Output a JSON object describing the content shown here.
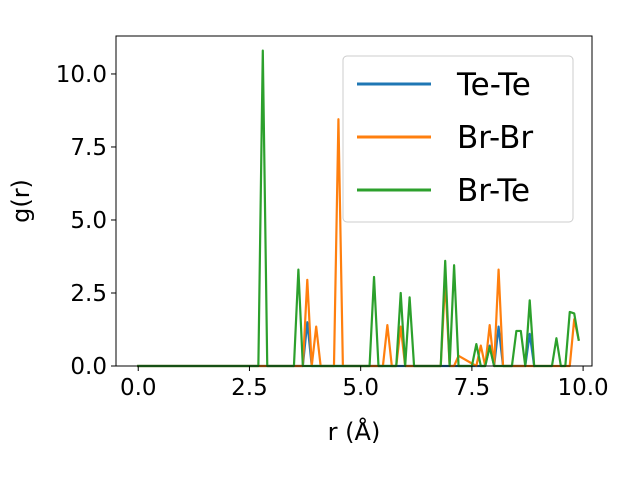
{
  "chart_data": {
    "type": "line",
    "title": "",
    "xlabel": "r (Å)",
    "ylabel": "g(r)",
    "xlim": [
      -0.5,
      10.2
    ],
    "ylim": [
      0,
      11.3
    ],
    "xticks": [
      0.0,
      2.5,
      5.0,
      7.5,
      10.0
    ],
    "xtick_labels": [
      "0.0",
      "2.5",
      "5.0",
      "7.5",
      "10.0"
    ],
    "yticks": [
      0.0,
      2.5,
      5.0,
      7.5,
      10.0
    ],
    "ytick_labels": [
      "0.0",
      "2.5",
      "5.0",
      "7.5",
      "10.0"
    ],
    "grid": false,
    "legend_position": "top-right",
    "series": [
      {
        "name": "Te-Te",
        "color": "#1f77b4",
        "x": [
          0.0,
          3.7,
          3.8,
          3.9,
          7.8,
          7.9,
          8.0,
          8.1,
          8.2,
          8.7,
          8.8,
          8.9
        ],
        "y": [
          0.0,
          0.0,
          1.5,
          0.0,
          0.0,
          0.7,
          0.0,
          1.35,
          0.0,
          0.0,
          1.1,
          0.0
        ]
      },
      {
        "name": "Br-Br",
        "color": "#ff7f0e",
        "x": [
          0.0,
          3.7,
          3.8,
          3.9,
          4.0,
          4.1,
          4.4,
          4.5,
          4.6,
          5.5,
          5.6,
          5.7,
          5.8,
          5.9,
          6.0,
          6.8,
          6.9,
          7.0,
          7.1,
          7.2,
          7.6,
          7.7,
          7.8,
          7.9,
          8.0,
          8.1,
          8.2,
          9.7,
          9.8,
          9.9
        ],
        "y": [
          0.0,
          0.0,
          2.95,
          0.0,
          1.35,
          0.0,
          0.0,
          8.45,
          0.0,
          0.0,
          1.4,
          0.0,
          0.0,
          1.35,
          0.0,
          0.0,
          2.95,
          0.0,
          0.0,
          0.35,
          0.0,
          0.7,
          0.0,
          1.4,
          0.0,
          3.3,
          0.0,
          0.0,
          1.6,
          0.9
        ]
      },
      {
        "name": "Br-Te",
        "color": "#2ca02c",
        "x": [
          0.0,
          2.7,
          2.8,
          2.9,
          3.5,
          3.6,
          3.7,
          5.2,
          5.3,
          5.4,
          5.8,
          5.9,
          6.0,
          6.1,
          6.2,
          6.8,
          6.9,
          7.0,
          7.1,
          7.2,
          7.5,
          7.6,
          7.7,
          7.8,
          7.9,
          8.0,
          8.4,
          8.5,
          8.6,
          8.7,
          8.8,
          8.9,
          9.3,
          9.4,
          9.5,
          9.6,
          9.7,
          9.8,
          9.9
        ],
        "y": [
          0.0,
          0.0,
          10.8,
          0.0,
          0.0,
          3.3,
          0.0,
          0.0,
          3.05,
          0.0,
          0.0,
          2.5,
          0.0,
          2.35,
          0.0,
          0.0,
          3.6,
          0.0,
          3.45,
          0.0,
          0.0,
          0.75,
          0.0,
          0.0,
          0.65,
          0.0,
          0.0,
          1.2,
          1.2,
          0.0,
          2.25,
          0.0,
          0.0,
          0.95,
          0.0,
          0.0,
          1.85,
          1.8,
          0.9
        ]
      }
    ]
  }
}
